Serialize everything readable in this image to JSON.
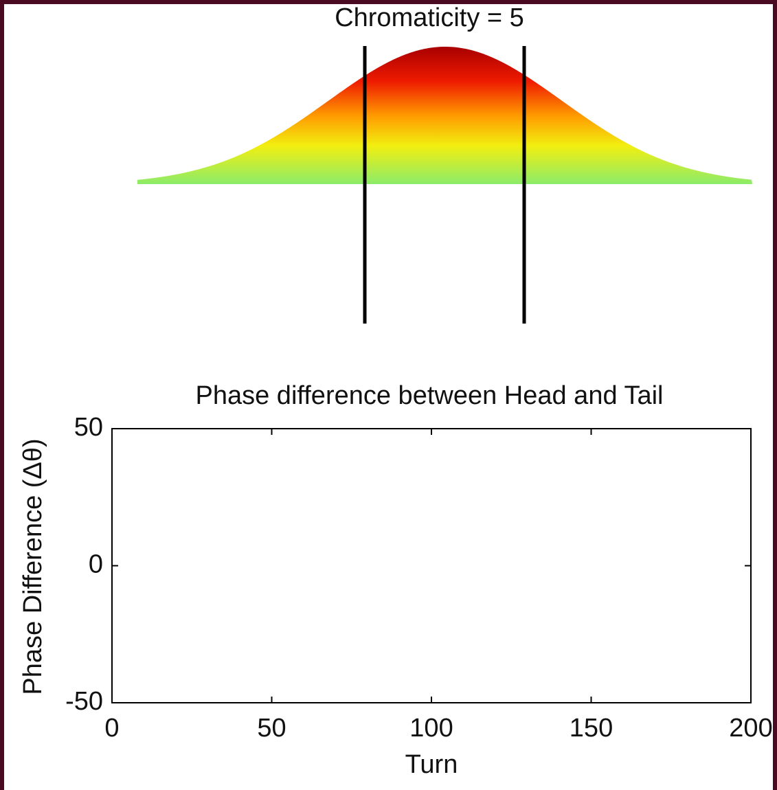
{
  "chart_data": [
    {
      "type": "profile",
      "title": "Chromaticity = 5"
    },
    {
      "type": "line",
      "title": "Phase difference between Head and Tail",
      "xlabel": "Turn",
      "ylabel": "Phase Difference (Δθ)",
      "xlim": [
        0,
        200
      ],
      "ylim": [
        -50,
        50
      ],
      "xticks": [
        0,
        50,
        100,
        150,
        200
      ],
      "yticks": [
        -50,
        0,
        50
      ]
    }
  ]
}
